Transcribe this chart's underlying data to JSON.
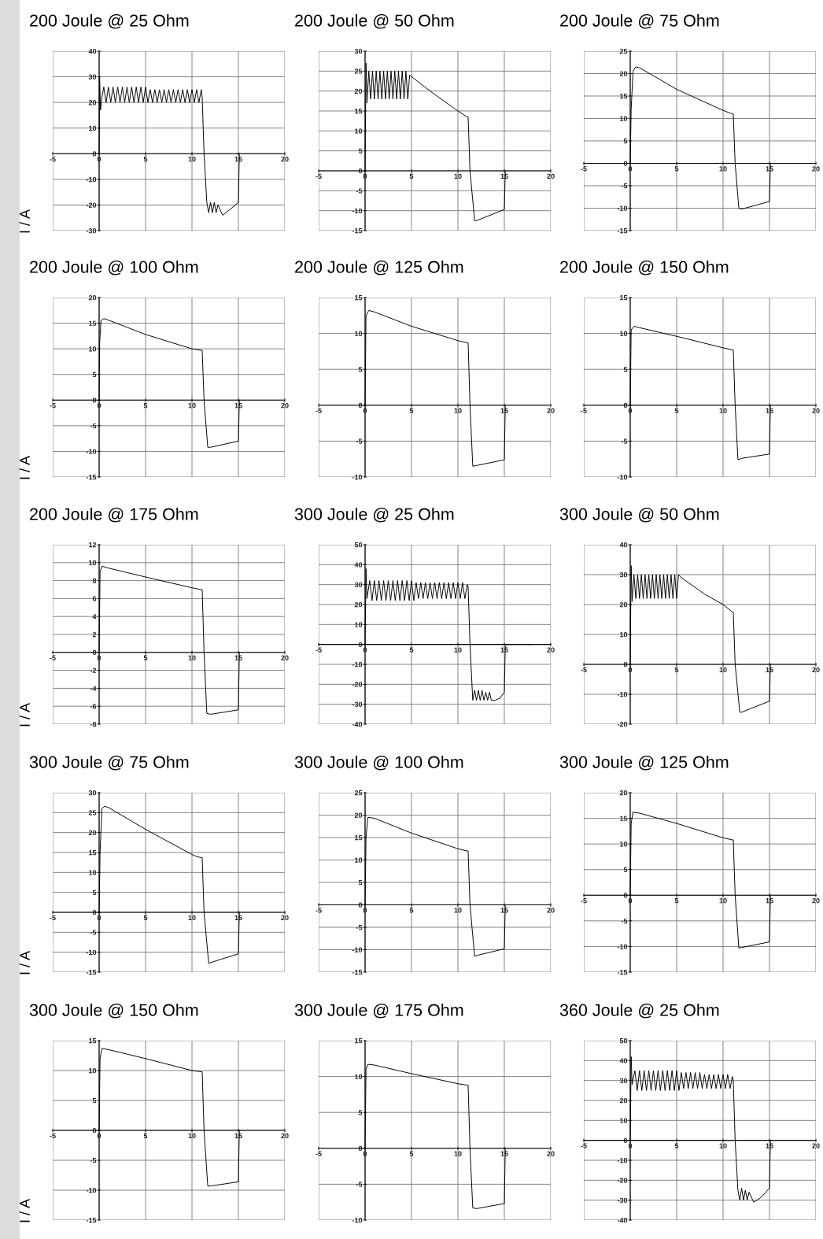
{
  "chart_data": [
    {
      "type": "line",
      "title": "200 Joule @ 25 Ohm",
      "ylabel": "I / A",
      "xlim": [
        -5,
        20
      ],
      "xticks": [
        -5,
        0,
        5,
        10,
        15,
        20
      ],
      "ylim": [
        -30,
        40
      ],
      "yticks": [
        -30,
        -20,
        -10,
        0,
        10,
        20,
        30,
        40
      ],
      "grid": true,
      "x": [
        0,
        0.05,
        0.15,
        0.3,
        0.5,
        0.75,
        1,
        1.25,
        1.5,
        1.75,
        2,
        2.25,
        2.5,
        2.75,
        3,
        3.25,
        3.5,
        3.75,
        4,
        4.25,
        4.5,
        4.75,
        5,
        5.25,
        5.5,
        5.75,
        6,
        6.25,
        6.5,
        6.75,
        7,
        7.25,
        7.5,
        7.75,
        8,
        8.25,
        8.5,
        8.75,
        9,
        9.25,
        9.5,
        9.75,
        10,
        10.25,
        10.5,
        10.75,
        11,
        11.1,
        11.3,
        11.6,
        11.8,
        12,
        12.2,
        12.4,
        12.6,
        12.8,
        13.3,
        14,
        15,
        15.1
      ],
      "series": [
        {
          "color": "#000000",
          "values": [
            0,
            30,
            17,
            22,
            26,
            20,
            26,
            20,
            26,
            20,
            26,
            20,
            26,
            20,
            26,
            20,
            26,
            20,
            26,
            20,
            26,
            20,
            26,
            20,
            25,
            20,
            25,
            20,
            25,
            20,
            25,
            20,
            25,
            20,
            25,
            20,
            25,
            20,
            25,
            20,
            25,
            20,
            25,
            20,
            25,
            20,
            25,
            22,
            0,
            -19,
            -23,
            -19,
            -23,
            -19,
            -23,
            -20,
            -24,
            -22,
            -19,
            0
          ]
        }
      ]
    },
    {
      "type": "line",
      "title": "200 Joule @ 50 Ohm",
      "xlim": [
        -5,
        20
      ],
      "xticks": [
        -5,
        0,
        5,
        10,
        15,
        20
      ],
      "ylim": [
        -15,
        30
      ],
      "yticks": [
        -15,
        -10,
        -5,
        0,
        5,
        10,
        15,
        20,
        25,
        30
      ],
      "grid": true,
      "x": [
        0,
        0.1,
        0.2,
        0.4,
        0.6,
        0.8,
        1,
        1.2,
        1.4,
        1.6,
        1.8,
        2,
        2.2,
        2.4,
        2.6,
        2.8,
        3,
        3.2,
        3.4,
        3.6,
        3.8,
        4,
        4.2,
        4.4,
        4.6,
        4.8,
        7,
        10,
        11,
        11.1,
        11.3,
        11.8,
        12,
        15,
        15.1
      ],
      "series": [
        {
          "color": "#000000",
          "values": [
            0,
            27,
            17,
            25,
            18,
            25,
            18,
            25,
            18,
            25,
            18,
            25,
            18,
            25,
            18,
            25,
            18,
            25,
            18,
            25,
            18,
            25,
            18,
            25,
            18,
            24,
            20,
            15,
            13.5,
            13.5,
            0,
            -12.5,
            -12.5,
            -9.7,
            0
          ]
        }
      ]
    },
    {
      "type": "line",
      "title": "200 Joule @ 75 Ohm",
      "xlim": [
        -5,
        20
      ],
      "xticks": [
        -5,
        0,
        5,
        10,
        15,
        20
      ],
      "ylim": [
        -15,
        25
      ],
      "yticks": [
        -15,
        -10,
        -5,
        0,
        5,
        10,
        15,
        20,
        25
      ],
      "grid": true,
      "x": [
        0,
        0.1,
        0.3,
        0.6,
        1,
        5,
        10,
        11,
        11.1,
        11.3,
        11.7,
        12,
        15,
        15.1
      ],
      "series": [
        {
          "color": "#000000",
          "values": [
            0,
            12,
            20.5,
            21.5,
            21.3,
            16.5,
            11.8,
            11,
            11,
            0,
            -10,
            -10.2,
            -8.5,
            0
          ]
        }
      ]
    },
    {
      "type": "line",
      "title": "200 Joule @ 100 Ohm",
      "ylabel": "I / A",
      "xlim": [
        -5,
        20
      ],
      "xticks": [
        -5,
        0,
        5,
        10,
        15,
        20
      ],
      "ylim": [
        -15,
        20
      ],
      "yticks": [
        -15,
        -10,
        -5,
        0,
        5,
        10,
        15,
        20
      ],
      "grid": true,
      "x": [
        0,
        0.05,
        0.2,
        0.5,
        1,
        5,
        10,
        11,
        11.1,
        11.3,
        11.7,
        12,
        15,
        15.1
      ],
      "series": [
        {
          "color": "#000000",
          "values": [
            0,
            11,
            15.5,
            15.9,
            15.6,
            12.8,
            10,
            9.7,
            9.7,
            0,
            -9.2,
            -9.2,
            -8,
            0
          ]
        }
      ]
    },
    {
      "type": "line",
      "title": "200 Joule @ 125 Ohm",
      "xlim": [
        -5,
        20
      ],
      "xticks": [
        -5,
        0,
        5,
        10,
        15,
        20
      ],
      "ylim": [
        -10,
        15
      ],
      "yticks": [
        -10,
        -5,
        0,
        5,
        10,
        15
      ],
      "grid": true,
      "x": [
        0,
        0.1,
        0.4,
        1,
        5,
        10,
        11,
        11.1,
        11.3,
        11.6,
        12,
        15,
        15.1
      ],
      "series": [
        {
          "color": "#000000",
          "values": [
            0,
            12.5,
            13.2,
            13,
            11,
            9,
            8.7,
            8.7,
            0,
            -8.5,
            -8.4,
            -7.6,
            0
          ]
        }
      ]
    },
    {
      "type": "line",
      "title": "200 Joule @ 150 Ohm",
      "xlim": [
        -5,
        20
      ],
      "xticks": [
        -5,
        0,
        5,
        10,
        15,
        20
      ],
      "ylim": [
        -10,
        15
      ],
      "yticks": [
        -10,
        -5,
        0,
        5,
        10,
        15
      ],
      "grid": true,
      "x": [
        0,
        0.1,
        0.4,
        1,
        5,
        10,
        11,
        11.1,
        11.3,
        11.6,
        12,
        15,
        15.1
      ],
      "series": [
        {
          "color": "#000000",
          "values": [
            0,
            10.5,
            11,
            10.8,
            9.6,
            8,
            7.7,
            7.7,
            0,
            -7.6,
            -7.4,
            -6.8,
            0
          ]
        }
      ]
    },
    {
      "type": "line",
      "title": "200 Joule @ 175 Ohm",
      "ylabel": "I / A",
      "xlim": [
        -5,
        20
      ],
      "xticks": [
        -5,
        0,
        5,
        10,
        15,
        20
      ],
      "ylim": [
        -8,
        12
      ],
      "yticks": [
        -8,
        -6,
        -4,
        -2,
        0,
        2,
        4,
        6,
        8,
        10,
        12
      ],
      "grid": true,
      "x": [
        0,
        0.1,
        0.3,
        1,
        5,
        10,
        11,
        11.1,
        11.3,
        11.6,
        12,
        15,
        15.1
      ],
      "series": [
        {
          "color": "#000000",
          "values": [
            0,
            9,
            9.6,
            9.4,
            8.4,
            7.2,
            7,
            7,
            0,
            -6.8,
            -6.9,
            -6.4,
            0
          ]
        }
      ]
    },
    {
      "type": "line",
      "title": "300 Joule @ 25 Ohm",
      "xlim": [
        -5,
        20
      ],
      "xticks": [
        -5,
        0,
        5,
        10,
        15,
        20
      ],
      "ylim": [
        -40,
        50
      ],
      "yticks": [
        -40,
        -30,
        -20,
        -10,
        0,
        10,
        20,
        30,
        40,
        50
      ],
      "grid": true,
      "x": [
        0,
        0.1,
        0.2,
        0.5,
        0.75,
        1,
        1.25,
        1.5,
        1.75,
        2,
        2.25,
        2.5,
        2.75,
        3,
        3.25,
        3.5,
        3.75,
        4,
        4.25,
        4.5,
        4.75,
        5,
        5.25,
        5.5,
        5.75,
        6,
        6.25,
        6.5,
        6.75,
        7,
        7.25,
        7.5,
        7.75,
        8,
        8.25,
        8.5,
        8.75,
        9,
        9.25,
        9.5,
        9.75,
        10,
        10.25,
        10.5,
        10.75,
        11,
        11.1,
        11.3,
        11.6,
        11.8,
        12,
        12.2,
        12.4,
        12.6,
        12.8,
        13,
        13.2,
        13.4,
        13.6,
        14,
        14.5,
        15,
        15.1,
        15.3,
        18
      ],
      "series": [
        {
          "color": "#000000",
          "values": [
            0,
            38,
            23,
            32,
            22,
            32,
            22,
            32,
            22,
            32,
            22,
            32,
            22,
            32,
            22,
            32,
            22,
            32,
            22,
            32,
            22,
            32,
            22,
            31,
            23,
            31,
            23,
            31,
            23,
            31,
            23,
            31,
            23,
            31,
            23,
            31,
            23,
            31,
            23,
            31,
            23,
            31,
            23,
            31,
            23,
            30,
            29,
            0,
            -28,
            -23,
            -28,
            -23,
            -28,
            -23,
            -28,
            -24,
            -28,
            -24,
            -28,
            -28,
            -27,
            -24,
            -1,
            0,
            0
          ]
        }
      ]
    },
    {
      "type": "line",
      "title": "300 Joule @ 50 Ohm",
      "xlim": [
        -5,
        20
      ],
      "xticks": [
        -5,
        0,
        5,
        10,
        15,
        20
      ],
      "ylim": [
        -20,
        40
      ],
      "yticks": [
        -20,
        -10,
        0,
        10,
        20,
        30,
        40
      ],
      "grid": true,
      "x": [
        0,
        0.1,
        0.2,
        0.4,
        0.6,
        0.8,
        1,
        1.2,
        1.4,
        1.6,
        1.8,
        2,
        2.2,
        2.4,
        2.6,
        2.8,
        3,
        3.2,
        3.4,
        3.6,
        3.8,
        4,
        4.2,
        4.4,
        4.6,
        4.8,
        5,
        5.2,
        5.5,
        8,
        10,
        11,
        11.1,
        11.3,
        11.8,
        12,
        15,
        15.1
      ],
      "series": [
        {
          "color": "#000000",
          "values": [
            0,
            33,
            21,
            30,
            22,
            30,
            22,
            30,
            22,
            30,
            22,
            30,
            22,
            30,
            22,
            30,
            22,
            30,
            22,
            30,
            22,
            30,
            22,
            30,
            22,
            30,
            22,
            30,
            29,
            23.5,
            20,
            17.5,
            17.5,
            0,
            -16,
            -16,
            -12.3,
            0
          ]
        }
      ]
    },
    {
      "type": "line",
      "title": "300 Joule @ 75 Ohm",
      "ylabel": "I / A",
      "xlim": [
        -5,
        20
      ],
      "xticks": [
        -5,
        0,
        5,
        10,
        15,
        20
      ],
      "ylim": [
        -15,
        30
      ],
      "yticks": [
        -15,
        -10,
        -5,
        0,
        5,
        10,
        15,
        20,
        25,
        30
      ],
      "grid": true,
      "x": [
        0,
        0.1,
        0.3,
        0.6,
        1,
        5,
        10,
        10.5,
        11,
        11.1,
        11.3,
        11.8,
        12,
        15,
        15.1
      ],
      "series": [
        {
          "color": "#000000",
          "values": [
            0,
            15,
            26,
            26.6,
            26.3,
            20.8,
            14.5,
            14,
            13.7,
            13.7,
            0,
            -12.8,
            -12.6,
            -10.4,
            0
          ]
        }
      ]
    },
    {
      "type": "line",
      "title": "300 Joule @ 100 Ohm",
      "xlim": [
        -5,
        20
      ],
      "xticks": [
        -5,
        0,
        5,
        10,
        15,
        20
      ],
      "ylim": [
        -15,
        25
      ],
      "yticks": [
        -15,
        -10,
        -5,
        0,
        5,
        10,
        15,
        20,
        25
      ],
      "grid": true,
      "x": [
        0,
        0.1,
        0.3,
        1,
        5,
        10,
        11,
        11.1,
        11.3,
        11.8,
        12,
        15,
        15.1
      ],
      "series": [
        {
          "color": "#000000",
          "values": [
            0,
            15,
            19.5,
            19.3,
            16,
            12.5,
            12,
            12,
            0,
            -11.5,
            -11.3,
            -9.8,
            0
          ]
        }
      ]
    },
    {
      "type": "line",
      "title": "300 Joule @ 125 Ohm",
      "xlim": [
        -5,
        20
      ],
      "xticks": [
        -5,
        0,
        5,
        10,
        15,
        20
      ],
      "ylim": [
        -15,
        20
      ],
      "yticks": [
        -15,
        -10,
        -5,
        0,
        5,
        10,
        15,
        20
      ],
      "grid": true,
      "x": [
        0,
        0.1,
        0.3,
        1,
        5,
        10,
        11,
        11.1,
        11.3,
        11.7,
        12,
        15,
        15.1
      ],
      "series": [
        {
          "color": "#000000",
          "values": [
            0,
            14,
            16.2,
            16,
            14,
            11.2,
            10.8,
            10.8,
            0,
            -10.3,
            -10.2,
            -9.1,
            0
          ]
        }
      ]
    },
    {
      "type": "line",
      "title": "300 Joule @ 150 Ohm",
      "ylabel": "I / A",
      "xlim": [
        -5,
        20
      ],
      "xticks": [
        -5,
        0,
        5,
        10,
        15,
        20
      ],
      "ylim": [
        -15,
        15
      ],
      "yticks": [
        -15,
        -10,
        -5,
        0,
        5,
        10,
        15
      ],
      "grid": true,
      "x": [
        0,
        0.1,
        0.3,
        1,
        5,
        10,
        11,
        11.1,
        11.3,
        11.7,
        12,
        15,
        15.1
      ],
      "series": [
        {
          "color": "#000000",
          "values": [
            0,
            12,
            13.7,
            13.5,
            12,
            10,
            9.8,
            9.8,
            0,
            -9.3,
            -9.3,
            -8.6,
            0
          ]
        }
      ]
    },
    {
      "type": "line",
      "title": "300 Joule @ 175 Ohm",
      "xlim": [
        -5,
        20
      ],
      "xticks": [
        -5,
        0,
        5,
        10,
        15,
        20
      ],
      "ylim": [
        -10,
        15
      ],
      "yticks": [
        -10,
        -5,
        0,
        5,
        10,
        15
      ],
      "grid": true,
      "x": [
        0,
        0.1,
        0.3,
        1,
        5,
        10,
        11,
        11.1,
        11.3,
        11.6,
        12,
        15,
        15.1
      ],
      "series": [
        {
          "color": "#000000",
          "values": [
            0,
            11,
            11.7,
            11.6,
            10.4,
            9,
            8.8,
            8.8,
            0,
            -8.3,
            -8.4,
            -7.7,
            0
          ]
        }
      ]
    },
    {
      "type": "line",
      "title": "360 Joule @ 25 Ohm",
      "xlim": [
        -5,
        20
      ],
      "xticks": [
        -5,
        0,
        5,
        10,
        15,
        20
      ],
      "ylim": [
        -40,
        50
      ],
      "yticks": [
        -40,
        -30,
        -20,
        -10,
        0,
        10,
        20,
        30,
        40,
        50
      ],
      "grid": true,
      "x": [
        0,
        0.1,
        0.2,
        0.5,
        0.75,
        1,
        1.25,
        1.5,
        1.75,
        2,
        2.25,
        2.5,
        2.75,
        3,
        3.25,
        3.5,
        3.75,
        4,
        4.25,
        4.5,
        4.75,
        5,
        5.25,
        5.5,
        5.75,
        6,
        6.25,
        6.5,
        6.75,
        7,
        7.25,
        7.5,
        7.75,
        8,
        8.25,
        8.5,
        8.75,
        9,
        9.25,
        9.5,
        9.75,
        10,
        10.25,
        10.5,
        10.75,
        11,
        11.1,
        11.3,
        11.6,
        11.8,
        12,
        12.2,
        12.4,
        12.6,
        12.8,
        13.3,
        14,
        15,
        15.1
      ],
      "series": [
        {
          "color": "#000000",
          "values": [
            0,
            42,
            28,
            35,
            25,
            35,
            25,
            35,
            25,
            35,
            25,
            35,
            25,
            35,
            25,
            35,
            25,
            35,
            25,
            35,
            25,
            35,
            25,
            34,
            26,
            34,
            26,
            34,
            26,
            34,
            26,
            34,
            26,
            33,
            26,
            33,
            26,
            33,
            26,
            33,
            26,
            33,
            26,
            33,
            26,
            32,
            30,
            0,
            -25,
            -30,
            -24,
            -30,
            -25,
            -30,
            -26,
            -31,
            -29,
            -24,
            0
          ]
        }
      ]
    }
  ]
}
